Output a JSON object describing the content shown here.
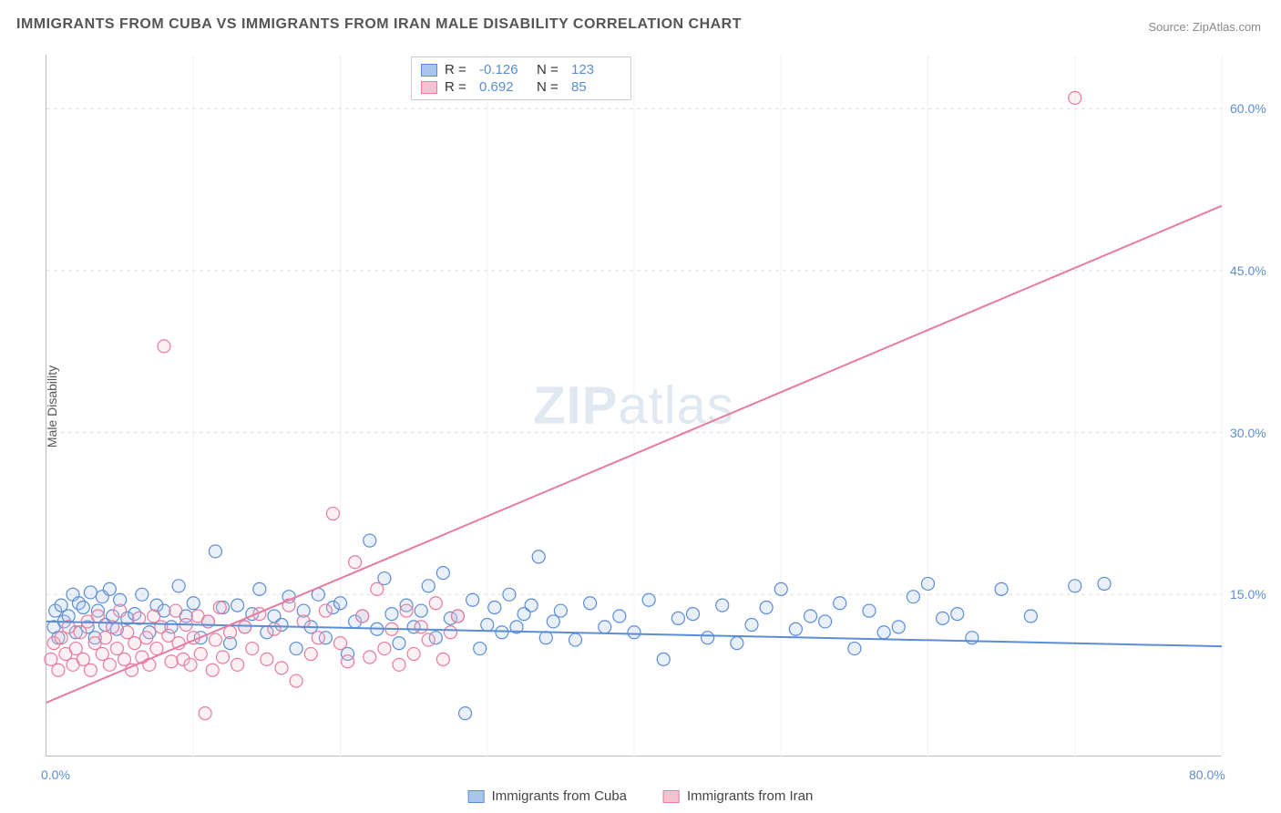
{
  "title": "IMMIGRANTS FROM CUBA VS IMMIGRANTS FROM IRAN MALE DISABILITY CORRELATION CHART",
  "source": "Source: ZipAtlas.com",
  "watermark_bold": "ZIP",
  "watermark_light": "atlas",
  "ylabel": "Male Disability",
  "chart": {
    "type": "scatter",
    "xlim": [
      0,
      80
    ],
    "ylim": [
      0,
      65
    ],
    "x_ticks": [
      0,
      80
    ],
    "x_tick_labels": [
      "0.0%",
      "80.0%"
    ],
    "y_ticks": [
      15,
      30,
      45,
      60
    ],
    "y_tick_labels": [
      "15.0%",
      "30.0%",
      "45.0%",
      "60.0%"
    ],
    "x_gridlines": [
      10,
      20,
      30,
      40,
      50,
      60,
      70,
      80
    ],
    "background_color": "#ffffff",
    "grid_color": "#dddddd",
    "axis_color": "#bbbbbb",
    "tick_label_color": "#5b8dd6",
    "marker_radius": 7,
    "marker_stroke_width": 1.2,
    "marker_fill_opacity": 0.25,
    "trend_line_width": 2
  },
  "series": [
    {
      "name": "Immigrants from Cuba",
      "color_fill": "#a8c5ec",
      "color_stroke": "#5b8dd6",
      "r_value": "-0.126",
      "n_value": "123",
      "trend": {
        "x1": 0,
        "y1": 12.5,
        "x2": 80,
        "y2": 10.2
      },
      "points": [
        [
          0.5,
          12
        ],
        [
          0.6,
          13.5
        ],
        [
          0.8,
          11
        ],
        [
          1,
          14
        ],
        [
          1.2,
          12.5
        ],
        [
          1.5,
          13
        ],
        [
          1.8,
          15
        ],
        [
          2,
          11.5
        ],
        [
          2.2,
          14.2
        ],
        [
          2.5,
          13.8
        ],
        [
          2.8,
          12
        ],
        [
          3,
          15.2
        ],
        [
          3.3,
          11
        ],
        [
          3.5,
          13.5
        ],
        [
          3.8,
          14.8
        ],
        [
          4,
          12.2
        ],
        [
          4.3,
          15.5
        ],
        [
          4.5,
          13
        ],
        [
          4.8,
          11.8
        ],
        [
          5,
          14.5
        ],
        [
          5.5,
          12.8
        ],
        [
          6,
          13.2
        ],
        [
          6.5,
          15
        ],
        [
          7,
          11.5
        ],
        [
          7.5,
          14
        ],
        [
          8,
          13.5
        ],
        [
          8.5,
          12
        ],
        [
          9,
          15.8
        ],
        [
          9.5,
          13
        ],
        [
          10,
          14.2
        ],
        [
          10.5,
          11
        ],
        [
          11,
          12.5
        ],
        [
          11.5,
          19
        ],
        [
          12,
          13.8
        ],
        [
          12.5,
          10.5
        ],
        [
          13,
          14
        ],
        [
          13.5,
          12
        ],
        [
          14,
          13.2
        ],
        [
          14.5,
          15.5
        ],
        [
          15,
          11.5
        ],
        [
          15.5,
          13
        ],
        [
          16,
          12.2
        ],
        [
          16.5,
          14.8
        ],
        [
          17,
          10
        ],
        [
          17.5,
          13.5
        ],
        [
          18,
          12
        ],
        [
          18.5,
          15
        ],
        [
          19,
          11
        ],
        [
          19.5,
          13.8
        ],
        [
          20,
          14.2
        ],
        [
          20.5,
          9.5
        ],
        [
          21,
          12.5
        ],
        [
          21.5,
          13
        ],
        [
          22,
          20
        ],
        [
          22.5,
          11.8
        ],
        [
          23,
          16.5
        ],
        [
          23.5,
          13.2
        ],
        [
          24,
          10.5
        ],
        [
          24.5,
          14
        ],
        [
          25,
          12
        ],
        [
          25.5,
          13.5
        ],
        [
          26,
          15.8
        ],
        [
          26.5,
          11
        ],
        [
          27,
          17
        ],
        [
          27.5,
          12.8
        ],
        [
          28,
          13
        ],
        [
          28.5,
          4
        ],
        [
          29,
          14.5
        ],
        [
          29.5,
          10
        ],
        [
          30,
          12.2
        ],
        [
          30.5,
          13.8
        ],
        [
          31,
          11.5
        ],
        [
          31.5,
          15
        ],
        [
          32,
          12
        ],
        [
          32.5,
          13.2
        ],
        [
          33,
          14
        ],
        [
          33.5,
          18.5
        ],
        [
          34,
          11
        ],
        [
          34.5,
          12.5
        ],
        [
          35,
          13.5
        ],
        [
          36,
          10.8
        ],
        [
          37,
          14.2
        ],
        [
          38,
          12
        ],
        [
          39,
          13
        ],
        [
          40,
          11.5
        ],
        [
          41,
          14.5
        ],
        [
          42,
          9
        ],
        [
          43,
          12.8
        ],
        [
          44,
          13.2
        ],
        [
          45,
          11
        ],
        [
          46,
          14
        ],
        [
          47,
          10.5
        ],
        [
          48,
          12.2
        ],
        [
          49,
          13.8
        ],
        [
          50,
          15.5
        ],
        [
          51,
          11.8
        ],
        [
          52,
          13
        ],
        [
          53,
          12.5
        ],
        [
          54,
          14.2
        ],
        [
          55,
          10
        ],
        [
          56,
          13.5
        ],
        [
          57,
          11.5
        ],
        [
          58,
          12
        ],
        [
          59,
          14.8
        ],
        [
          60,
          16
        ],
        [
          61,
          12.8
        ],
        [
          62,
          13.2
        ],
        [
          63,
          11
        ],
        [
          65,
          15.5
        ],
        [
          67,
          13
        ],
        [
          70,
          15.8
        ],
        [
          72,
          16
        ]
      ]
    },
    {
      "name": "Immigrants from Iran",
      "color_fill": "#f5c2d1",
      "color_stroke": "#e87ba0",
      "r_value": "0.692",
      "n_value": "85",
      "trend": {
        "x1": 0,
        "y1": 5,
        "x2": 80,
        "y2": 51
      },
      "points": [
        [
          0.3,
          9
        ],
        [
          0.5,
          10.5
        ],
        [
          0.8,
          8
        ],
        [
          1,
          11
        ],
        [
          1.3,
          9.5
        ],
        [
          1.5,
          12
        ],
        [
          1.8,
          8.5
        ],
        [
          2,
          10
        ],
        [
          2.3,
          11.5
        ],
        [
          2.5,
          9
        ],
        [
          2.8,
          12.5
        ],
        [
          3,
          8
        ],
        [
          3.3,
          10.5
        ],
        [
          3.5,
          13
        ],
        [
          3.8,
          9.5
        ],
        [
          4,
          11
        ],
        [
          4.3,
          8.5
        ],
        [
          4.5,
          12
        ],
        [
          4.8,
          10
        ],
        [
          5,
          13.5
        ],
        [
          5.3,
          9
        ],
        [
          5.5,
          11.5
        ],
        [
          5.8,
          8
        ],
        [
          6,
          10.5
        ],
        [
          6.3,
          12.8
        ],
        [
          6.5,
          9.2
        ],
        [
          6.8,
          11
        ],
        [
          7,
          8.5
        ],
        [
          7.3,
          13
        ],
        [
          7.5,
          10
        ],
        [
          7.8,
          12
        ],
        [
          8,
          38
        ],
        [
          8.3,
          11.2
        ],
        [
          8.5,
          8.8
        ],
        [
          8.8,
          13.5
        ],
        [
          9,
          10.5
        ],
        [
          9.3,
          9
        ],
        [
          9.5,
          12.2
        ],
        [
          9.8,
          8.5
        ],
        [
          10,
          11
        ],
        [
          10.3,
          13
        ],
        [
          10.5,
          9.5
        ],
        [
          10.8,
          4
        ],
        [
          11,
          12.5
        ],
        [
          11.3,
          8
        ],
        [
          11.5,
          10.8
        ],
        [
          11.8,
          13.8
        ],
        [
          12,
          9.2
        ],
        [
          12.5,
          11.5
        ],
        [
          13,
          8.5
        ],
        [
          13.5,
          12
        ],
        [
          14,
          10
        ],
        [
          14.5,
          13.2
        ],
        [
          15,
          9
        ],
        [
          15.5,
          11.8
        ],
        [
          16,
          8.2
        ],
        [
          16.5,
          14
        ],
        [
          17,
          7
        ],
        [
          17.5,
          12.5
        ],
        [
          18,
          9.5
        ],
        [
          18.5,
          11
        ],
        [
          19,
          13.5
        ],
        [
          19.5,
          22.5
        ],
        [
          20,
          10.5
        ],
        [
          20.5,
          8.8
        ],
        [
          21,
          18
        ],
        [
          21.5,
          13
        ],
        [
          22,
          9.2
        ],
        [
          22.5,
          15.5
        ],
        [
          23,
          10
        ],
        [
          23.5,
          11.8
        ],
        [
          24,
          8.5
        ],
        [
          24.5,
          13.5
        ],
        [
          25,
          9.5
        ],
        [
          25.5,
          12
        ],
        [
          26,
          10.8
        ],
        [
          26.5,
          14.2
        ],
        [
          27,
          9
        ],
        [
          27.5,
          11.5
        ],
        [
          28,
          13
        ],
        [
          70,
          61
        ]
      ]
    }
  ],
  "legend_top": {
    "r_label": "R =",
    "n_label": "N ="
  },
  "legend_bottom": [
    {
      "label": "Immigrants from Cuba",
      "fill": "#a8c5ec",
      "stroke": "#5b8dd6"
    },
    {
      "label": "Immigrants from Iran",
      "fill": "#f5c2d1",
      "stroke": "#e87ba0"
    }
  ]
}
